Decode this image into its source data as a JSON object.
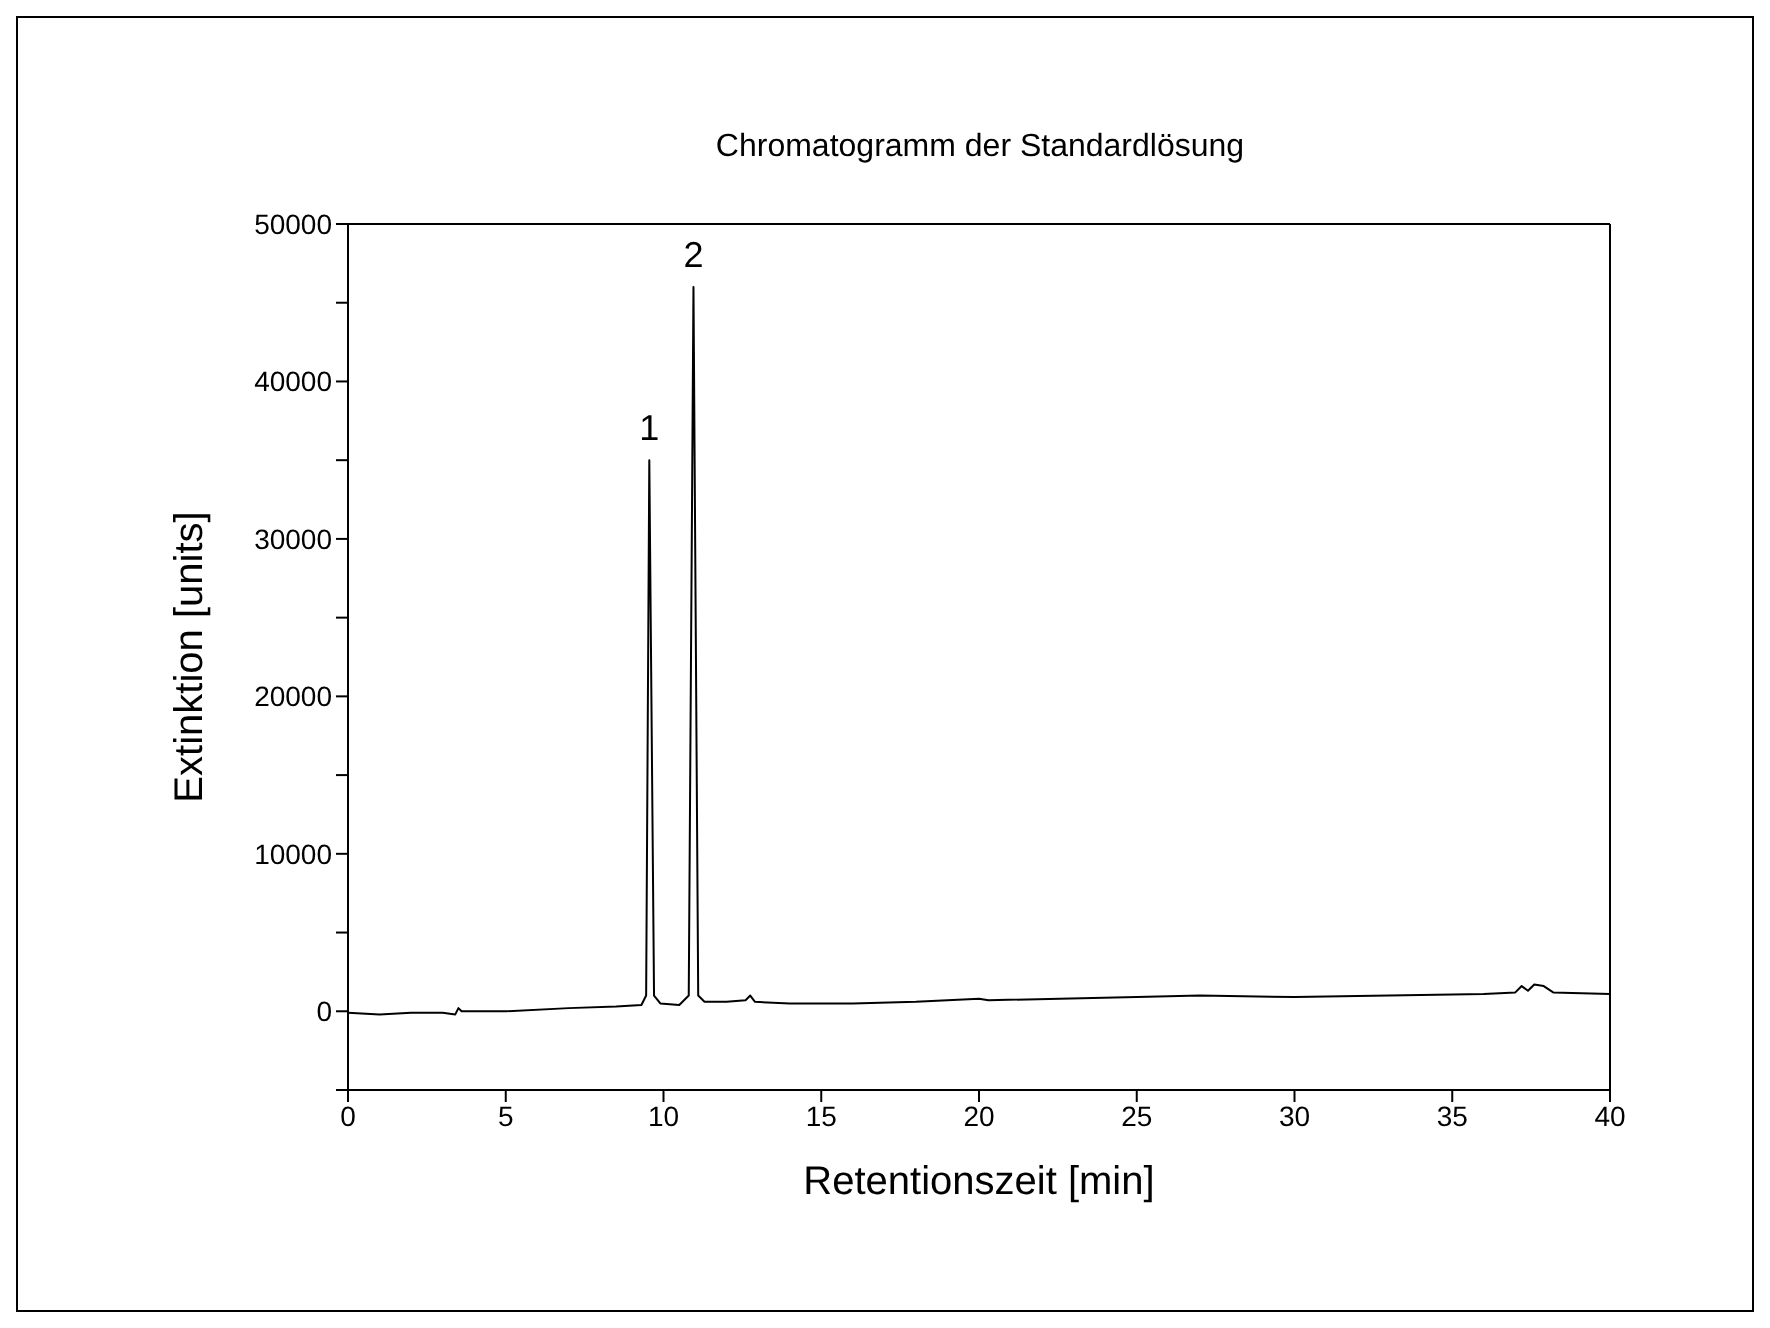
{
  "chart_data": {
    "type": "line",
    "title": "Chromatogramm der Standardlösung",
    "xlabel": "Retentionszeit [min]",
    "ylabel": "Extinktion [units]",
    "xlim": [
      0,
      40
    ],
    "xticks": [
      0,
      5,
      10,
      15,
      20,
      25,
      30,
      35,
      40
    ],
    "ylim": [
      -5000,
      50000
    ],
    "yticks": [
      {
        "value": -5000,
        "label": null
      },
      0,
      {
        "value": 5000,
        "label": null
      },
      10000,
      {
        "value": 15000,
        "label": null
      },
      20000,
      {
        "value": 25000,
        "label": null
      },
      30000,
      {
        "value": 35000,
        "label": null
      },
      40000,
      {
        "value": 45000,
        "label": null
      },
      50000
    ],
    "marker": "none",
    "line_style": "solid",
    "annotations": [
      {
        "text": "1",
        "x": 9.55,
        "y": 35000
      },
      {
        "text": "2",
        "x": 10.95,
        "y": 46000
      }
    ],
    "series": [
      {
        "color": "#000000",
        "x": [
          0,
          1,
          2,
          3,
          3.4,
          3.5,
          3.6,
          5,
          7,
          8.5,
          9.3,
          9.45,
          9.55,
          9.7,
          9.9,
          10.5,
          10.8,
          10.95,
          11.1,
          11.3,
          12,
          12.6,
          12.75,
          12.9,
          14,
          16,
          18,
          20,
          20.3,
          25,
          27,
          30,
          33,
          36,
          37,
          37.2,
          37.4,
          37.6,
          37.9,
          38.2,
          40
        ],
        "values": [
          -100,
          -200,
          -100,
          -100,
          -200,
          200,
          0,
          0,
          200,
          300,
          400,
          1000,
          35000,
          1000,
          500,
          400,
          1000,
          46000,
          1000,
          600,
          600,
          700,
          1000,
          600,
          500,
          500,
          600,
          800,
          700,
          900,
          1000,
          900,
          1000,
          1100,
          1200,
          1600,
          1300,
          1700,
          1600,
          1200,
          1100
        ]
      }
    ]
  }
}
